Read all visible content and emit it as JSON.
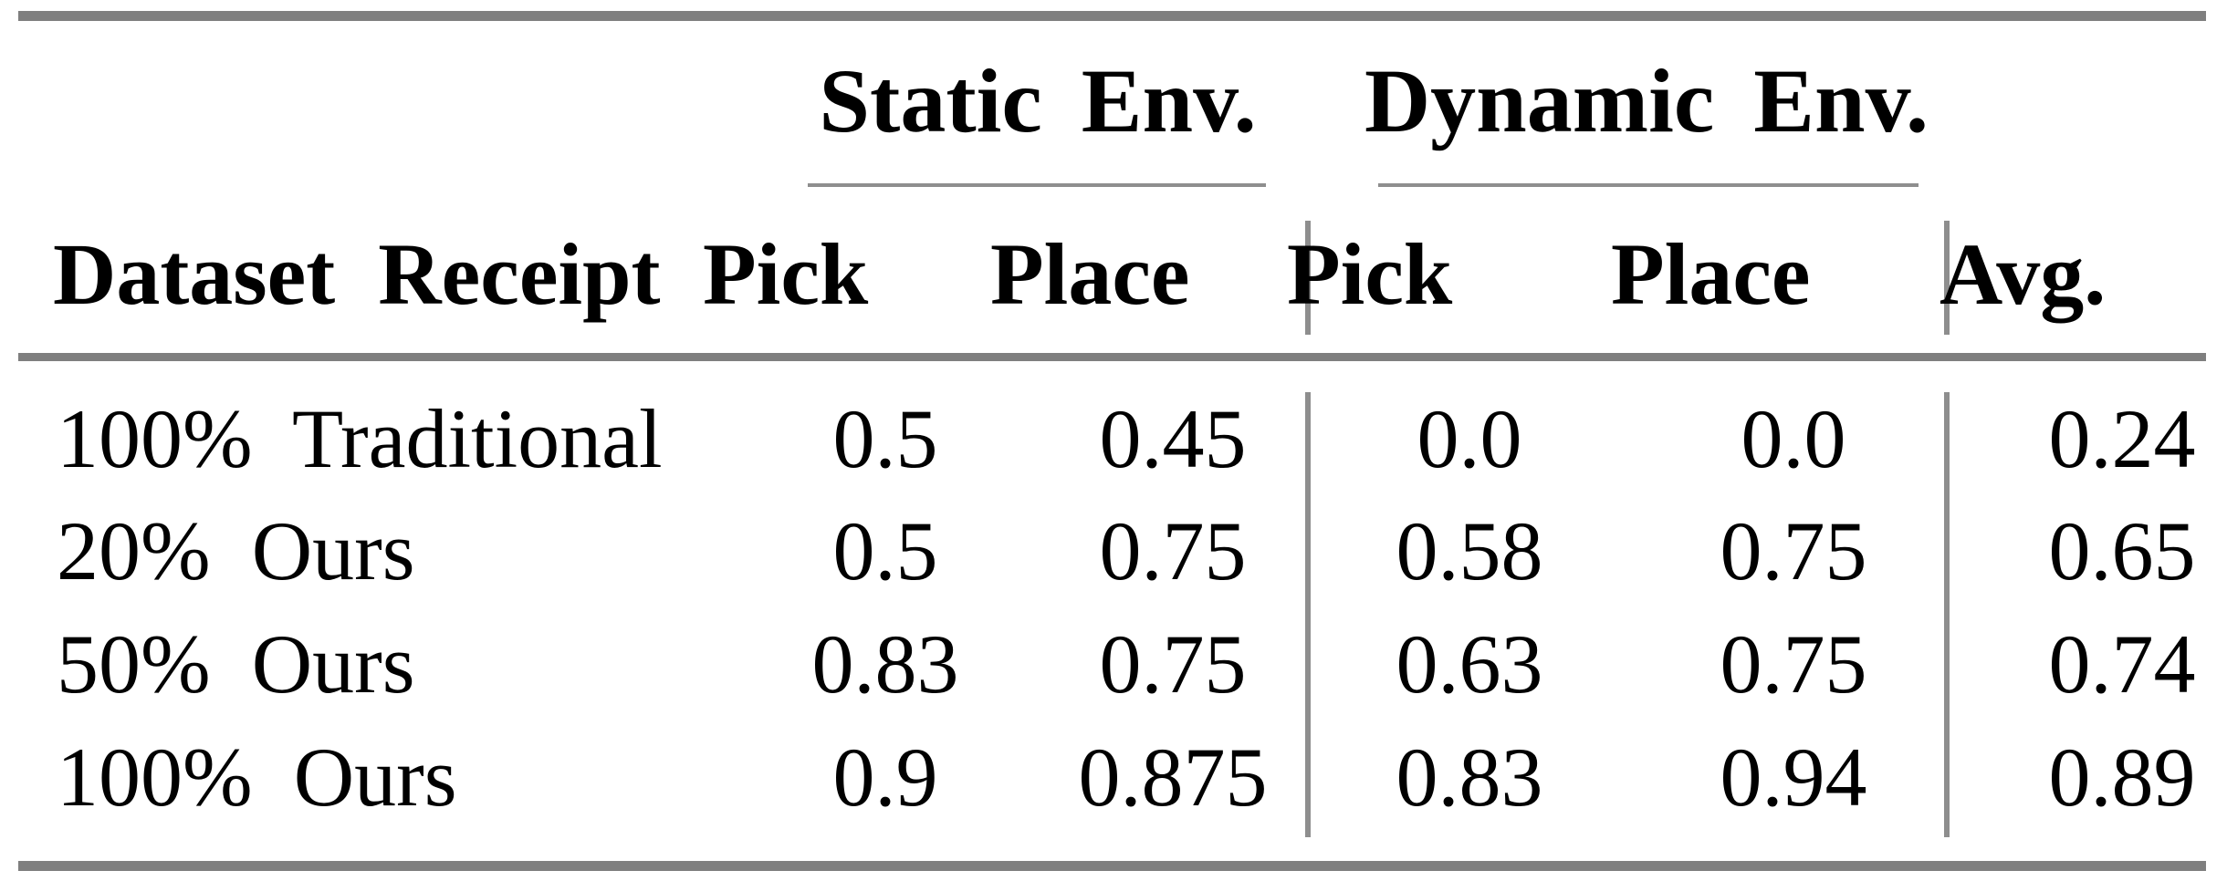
{
  "colors": {
    "background": "#ffffff",
    "text": "#000000",
    "heavy_rule": "#7f7f7f",
    "light_rule": "#8e8e8e"
  },
  "table": {
    "groups": [
      {
        "label": "Static Env."
      },
      {
        "label": "Dynamic Env."
      }
    ],
    "headers": {
      "row_label": "Dataset Receipt",
      "static_pick": "Pick",
      "static_place": "Place",
      "dynamic_pick": "Pick",
      "dynamic_place": "Place",
      "avg": "Avg."
    },
    "rows": [
      {
        "label": "100% Traditional",
        "static_pick": "0.5",
        "static_place": "0.45",
        "dynamic_pick": "0.0",
        "dynamic_place": "0.0",
        "avg": "0.24"
      },
      {
        "label": "20% Ours",
        "static_pick": "0.5",
        "static_place": "0.75",
        "dynamic_pick": "0.58",
        "dynamic_place": "0.75",
        "avg": "0.65"
      },
      {
        "label": "50% Ours",
        "static_pick": "0.83",
        "static_place": "0.75",
        "dynamic_pick": "0.63",
        "dynamic_place": "0.75",
        "avg": "0.74"
      },
      {
        "label": "100% Ours",
        "static_pick": "0.9",
        "static_place": "0.875",
        "dynamic_pick": "0.83",
        "dynamic_place": "0.94",
        "avg": "0.89"
      }
    ]
  }
}
